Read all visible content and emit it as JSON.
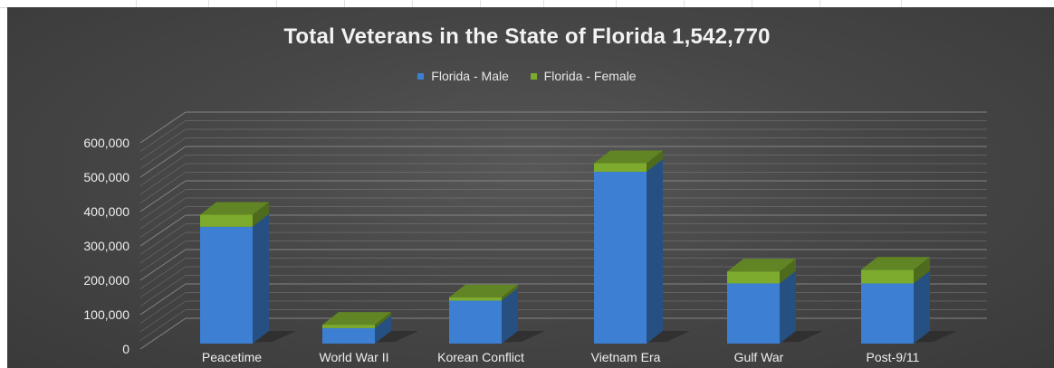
{
  "chart_data": {
    "type": "bar",
    "stacked": true,
    "style": "3d-column",
    "title": "Total Veterans in the State of Florida 1,542,770",
    "xlabel": "",
    "ylabel": "",
    "categories": [
      "Peacetime",
      "World War II",
      "Korean Conflict",
      "Vietnam Era",
      "Gulf War",
      "Post-9/11"
    ],
    "series": [
      {
        "name": "Florida - Male",
        "color": "#3d7fd2",
        "values": [
          340000,
          45000,
          125000,
          500000,
          175000,
          175000
        ]
      },
      {
        "name": "Florida - Female",
        "color": "#7cab2e",
        "values": [
          35000,
          10000,
          10000,
          25000,
          35000,
          40000
        ]
      }
    ],
    "ylim": [
      0,
      600000
    ],
    "yticks": [
      0,
      100000,
      200000,
      300000,
      400000,
      500000,
      600000
    ],
    "ytick_labels": [
      "0",
      "100,000",
      "200,000",
      "300,000",
      "400,000",
      "500,000",
      "600,000"
    ],
    "grid": true,
    "legend_position": "top"
  },
  "colors": {
    "background": "#444444",
    "grid": "#8a8a8a",
    "text": "#f2f2f2"
  }
}
